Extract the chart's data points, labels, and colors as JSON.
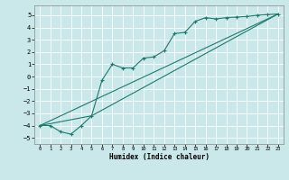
{
  "bg_color": "#cae8ea",
  "grid_color": "#ffffff",
  "line_color": "#1a7a6e",
  "xlabel": "Humidex (Indice chaleur)",
  "xlim": [
    -0.5,
    23.5
  ],
  "ylim": [
    -5.5,
    5.8
  ],
  "yticks": [
    -5,
    -4,
    -3,
    -2,
    -1,
    0,
    1,
    2,
    3,
    4,
    5
  ],
  "xticks": [
    0,
    1,
    2,
    3,
    4,
    5,
    6,
    7,
    8,
    9,
    10,
    11,
    12,
    13,
    14,
    15,
    16,
    17,
    18,
    19,
    20,
    21,
    22,
    23
  ],
  "line1_x": [
    0,
    1,
    2,
    3,
    4,
    5,
    6,
    7,
    8,
    9,
    10,
    11,
    12,
    13,
    14,
    15,
    16,
    17,
    18,
    19,
    20,
    21,
    22,
    23
  ],
  "line1_y": [
    -4.0,
    -4.0,
    -4.5,
    -4.7,
    -4.0,
    -3.2,
    -0.3,
    1.0,
    0.7,
    0.7,
    1.5,
    1.6,
    2.1,
    3.5,
    3.6,
    4.5,
    4.8,
    4.7,
    4.8,
    4.85,
    4.9,
    5.0,
    5.05,
    5.1
  ],
  "line2_x": [
    0,
    23
  ],
  "line2_y": [
    -4.0,
    5.1
  ],
  "line3_x": [
    0,
    5,
    23
  ],
  "line3_y": [
    -4.0,
    -3.2,
    5.1
  ]
}
